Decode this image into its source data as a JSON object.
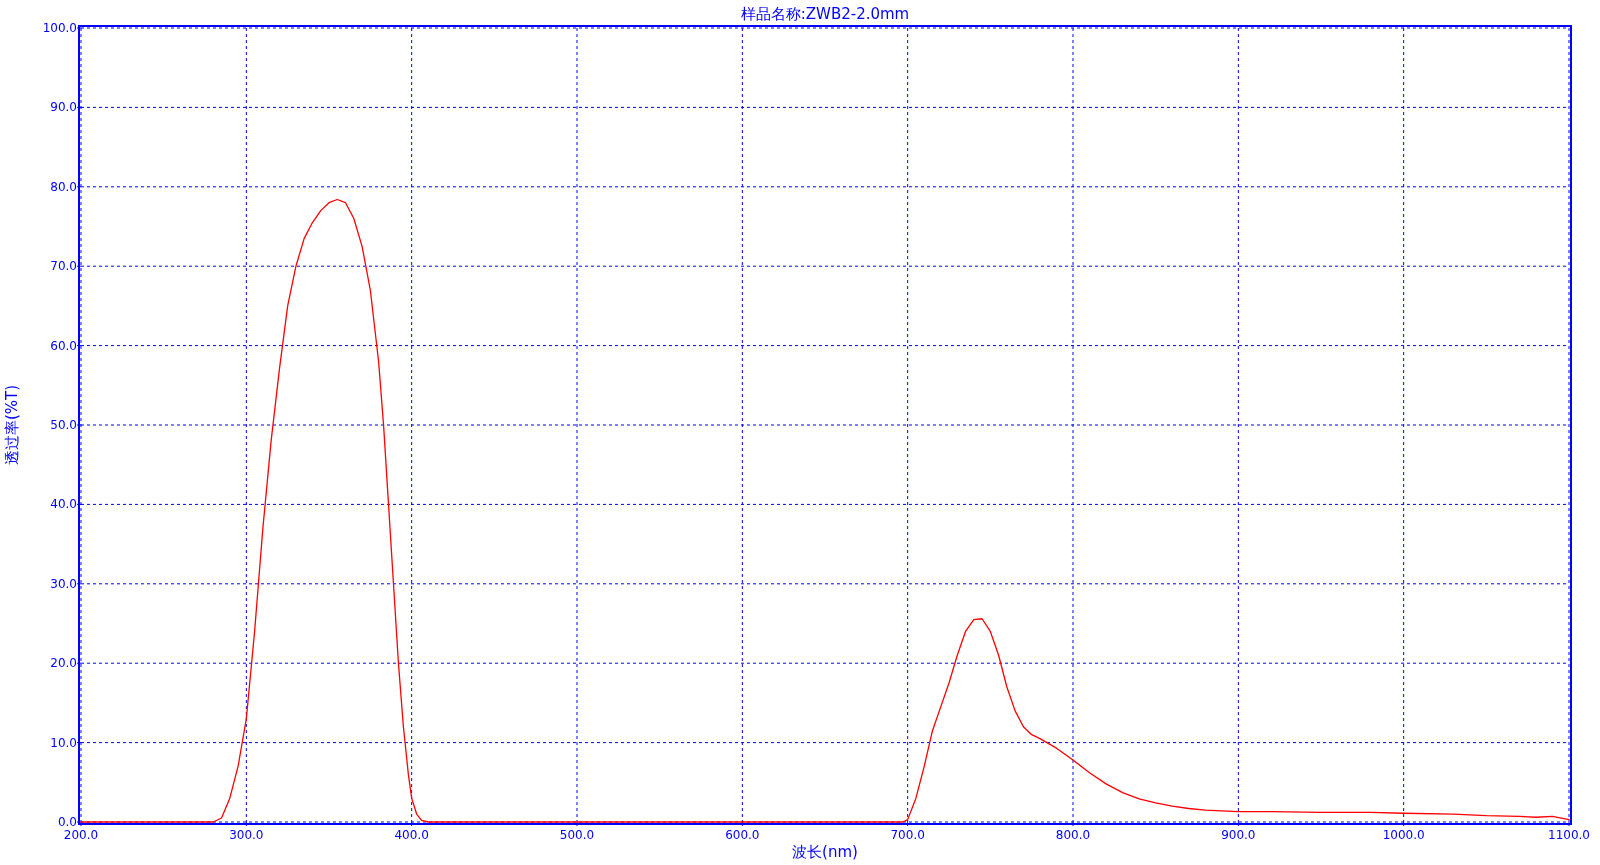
{
  "chart_data": {
    "type": "line",
    "title": "样品名称:ZWB2-2.0mm",
    "xlabel": "波长(nm)",
    "ylabel": "透过率(%T)",
    "xlim": [
      200,
      1100
    ],
    "ylim": [
      0,
      100
    ],
    "xticks": [
      {
        "value": 200,
        "label": "200.0"
      },
      {
        "value": 300,
        "label": "300.0"
      },
      {
        "value": 400,
        "label": "400.0"
      },
      {
        "value": 500,
        "label": "500.0"
      },
      {
        "value": 600,
        "label": "600.0"
      },
      {
        "value": 700,
        "label": "700.0"
      },
      {
        "value": 800,
        "label": "800.0"
      },
      {
        "value": 900,
        "label": "900.0"
      },
      {
        "value": 1000,
        "label": "1000.0"
      },
      {
        "value": 1100,
        "label": "1100.0"
      }
    ],
    "yticks": [
      {
        "value": 0,
        "label": "0.0"
      },
      {
        "value": 10,
        "label": "10.0"
      },
      {
        "value": 20,
        "label": "20.0"
      },
      {
        "value": 30,
        "label": "30.0"
      },
      {
        "value": 40,
        "label": "40.0"
      },
      {
        "value": 50,
        "label": "50.0"
      },
      {
        "value": 60,
        "label": "60.0"
      },
      {
        "value": 70,
        "label": "70.0"
      },
      {
        "value": 80,
        "label": "80.0"
      },
      {
        "value": 90,
        "label": "90.0"
      },
      {
        "value": 100,
        "label": "100.0"
      }
    ],
    "grid": true,
    "line_style": "solid",
    "x": [
      200,
      250,
      280,
      285,
      290,
      295,
      300,
      305,
      310,
      315,
      320,
      325,
      330,
      335,
      340,
      345,
      350,
      355,
      360,
      365,
      370,
      375,
      380,
      383,
      386,
      389,
      392,
      395,
      398,
      400,
      403,
      406,
      410,
      500,
      600,
      697,
      700,
      705,
      710,
      715,
      720,
      725,
      730,
      735,
      740,
      745,
      750,
      755,
      760,
      765,
      770,
      775,
      780,
      790,
      800,
      810,
      820,
      830,
      840,
      850,
      860,
      870,
      880,
      890,
      900,
      920,
      950,
      980,
      1000,
      1030,
      1050,
      1070,
      1080,
      1090,
      1100
    ],
    "series": [
      {
        "color": "#ff0000",
        "values": [
          0,
          0,
          0,
          0.5,
          3,
          7,
          13,
          24,
          37,
          48,
          57,
          65,
          70,
          73.5,
          75.5,
          77,
          78,
          78.4,
          78,
          76,
          72.5,
          67,
          58,
          50,
          40,
          30,
          20,
          12,
          6,
          3,
          1,
          0.2,
          0,
          0,
          0,
          0,
          0.3,
          3,
          7,
          11.5,
          14.5,
          17.5,
          21,
          24,
          25.5,
          25.6,
          24,
          21,
          17,
          14,
          12,
          11,
          10.5,
          9.3,
          7.8,
          6.2,
          4.8,
          3.7,
          2.9,
          2.4,
          2,
          1.7,
          1.5,
          1.4,
          1.3,
          1.3,
          1.2,
          1.2,
          1.1,
          1,
          0.8,
          0.7,
          0.6,
          0.7,
          0.3
        ]
      }
    ]
  }
}
